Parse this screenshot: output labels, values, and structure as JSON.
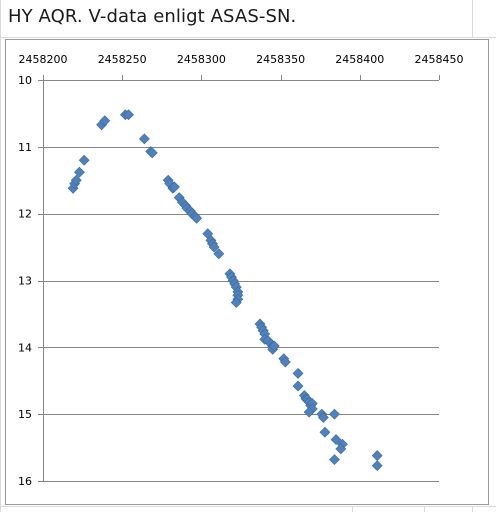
{
  "title": "HY AQR. V-data enligt ASAS-SN.",
  "colors": {
    "marker": "#4f81bd",
    "gridline": "#868686",
    "axis": "#868686",
    "sheet_grid": "#dadada"
  },
  "chart_data": {
    "type": "scatter",
    "title": "HY AQR. V-data enligt ASAS-SN.",
    "xlabel": "",
    "ylabel": "",
    "xlim": [
      2458200,
      2458450
    ],
    "ylim": [
      10,
      16
    ],
    "y_reversed": true,
    "x_axis_position": "top",
    "x_ticks": [
      2458200,
      2458250,
      2458300,
      2458350,
      2458400,
      2458450
    ],
    "x_tick_labels": [
      "2458200",
      "2458250",
      "2458300",
      "2458350",
      "2458400",
      "2458450"
    ],
    "y_ticks": [
      10,
      11,
      12,
      13,
      14,
      15,
      16
    ],
    "y_tick_labels": [
      "10",
      "11",
      "12",
      "13",
      "14",
      "15",
      "16"
    ],
    "grid": "horizontal-major",
    "legend": "none",
    "marker": "diamond",
    "series": [
      {
        "points": [
          [
            2458219,
            11.62
          ],
          [
            2458220,
            11.55
          ],
          [
            2458221,
            11.5
          ],
          [
            2458223,
            11.38
          ],
          [
            2458226,
            11.2
          ],
          [
            2458237,
            10.67
          ],
          [
            2458239,
            10.61
          ],
          [
            2458252,
            10.52
          ],
          [
            2458254,
            10.52
          ],
          [
            2458264,
            10.88
          ],
          [
            2458268,
            11.07
          ],
          [
            2458269,
            11.09
          ],
          [
            2458279,
            11.5
          ],
          [
            2458280,
            11.55
          ],
          [
            2458282,
            11.62
          ],
          [
            2458283,
            11.6
          ],
          [
            2458286,
            11.76
          ],
          [
            2458288,
            11.83
          ],
          [
            2458290,
            11.88
          ],
          [
            2458291,
            11.92
          ],
          [
            2458293,
            11.96
          ],
          [
            2458294,
            12.0
          ],
          [
            2458296,
            12.04
          ],
          [
            2458297,
            12.07
          ],
          [
            2458304,
            12.3
          ],
          [
            2458306,
            12.4
          ],
          [
            2458307,
            12.45
          ],
          [
            2458308,
            12.5
          ],
          [
            2458311,
            12.6
          ],
          [
            2458318,
            12.9
          ],
          [
            2458319,
            12.95
          ],
          [
            2458320,
            13.0
          ],
          [
            2458321,
            13.05
          ],
          [
            2458322,
            13.1
          ],
          [
            2458323,
            13.17
          ],
          [
            2458323,
            13.22
          ],
          [
            2458323,
            13.28
          ],
          [
            2458322,
            13.33
          ],
          [
            2458337,
            13.65
          ],
          [
            2458338,
            13.7
          ],
          [
            2458339,
            13.75
          ],
          [
            2458340,
            13.8
          ],
          [
            2458340,
            13.88
          ],
          [
            2458342,
            13.9
          ],
          [
            2458344,
            13.95
          ],
          [
            2458345,
            13.98
          ],
          [
            2458345,
            14.03
          ],
          [
            2458346,
            13.98
          ],
          [
            2458352,
            14.17
          ],
          [
            2458353,
            14.22
          ],
          [
            2458361,
            14.39
          ],
          [
            2458361,
            14.58
          ],
          [
            2458365,
            14.72
          ],
          [
            2458366,
            14.77
          ],
          [
            2458367,
            14.78
          ],
          [
            2458368,
            14.82
          ],
          [
            2458369,
            14.87
          ],
          [
            2458370,
            14.84
          ],
          [
            2458370,
            14.92
          ],
          [
            2458368,
            14.97
          ],
          [
            2458376,
            15.0
          ],
          [
            2458377,
            15.05
          ],
          [
            2458384,
            15.0
          ],
          [
            2458378,
            15.27
          ],
          [
            2458385,
            15.38
          ],
          [
            2458389,
            15.45
          ],
          [
            2458388,
            15.52
          ],
          [
            2458384,
            15.68
          ],
          [
            2458411,
            15.62
          ],
          [
            2458411,
            15.77
          ]
        ]
      }
    ]
  }
}
